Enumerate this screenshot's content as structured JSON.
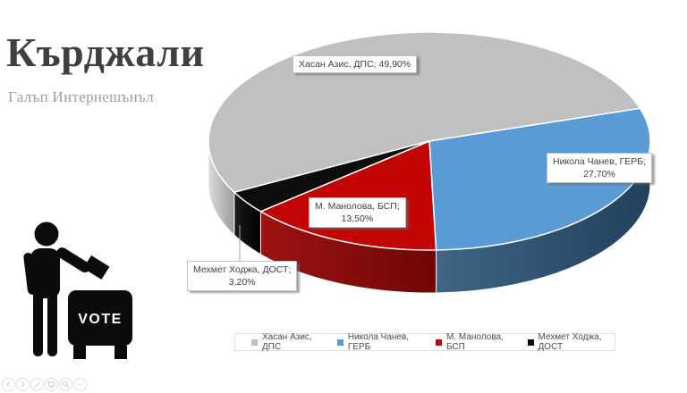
{
  "header": {
    "title": "Кърджали",
    "subtitle": "Галъп Интернешънъл"
  },
  "chart_data": {
    "type": "pie",
    "is_3d": true,
    "title": "",
    "legend_position": "bottom",
    "start_angle_deg": 242,
    "slices": [
      {
        "label": "Хасан Азис, ДПС",
        "value": 49.9,
        "value_display": "49,90%",
        "color": "#c0c0c0",
        "side_color": "#9b9b9b",
        "side_color_light": "#dcdcdc"
      },
      {
        "label": "Никола Чанев, ГЕРБ",
        "value": 27.7,
        "value_display": "27,70%",
        "color": "#5b9bd5",
        "side_color": "#21405c",
        "side_color_light": "#3f6686"
      },
      {
        "label": "М. Манолова, БСП",
        "value": 13.5,
        "value_display": "13,50%",
        "color": "#c10505",
        "side_color": "#700606",
        "side_color_light": "#9e1313"
      },
      {
        "label": "Мехмет Ходжа, ДОСТ",
        "value": 3.2,
        "value_display": "3,20%",
        "color": "#0d0d0d",
        "side_color": "#000000",
        "side_color_light": "#1c1c1c"
      }
    ],
    "data_labels": [
      {
        "line1": "Хасан Азис, ДПС; 49,90%"
      },
      {
        "line1": "Никола Чанев, ГЕРБ;",
        "line2": "27,70%"
      },
      {
        "line1": "М. Манолова, БСП;",
        "line2": "13,50%"
      },
      {
        "line1": "Мехмет Ходжа, ДОСТ;",
        "line2": "3,20%"
      }
    ]
  },
  "vote_icon": {
    "label": "VOTE"
  },
  "viewer_toolbar": {
    "icons": [
      {
        "name": "prev-icon"
      },
      {
        "name": "next-icon"
      },
      {
        "name": "pen-icon"
      },
      {
        "name": "screen-icon"
      },
      {
        "name": "search-icon"
      },
      {
        "name": "more-icon"
      }
    ]
  }
}
